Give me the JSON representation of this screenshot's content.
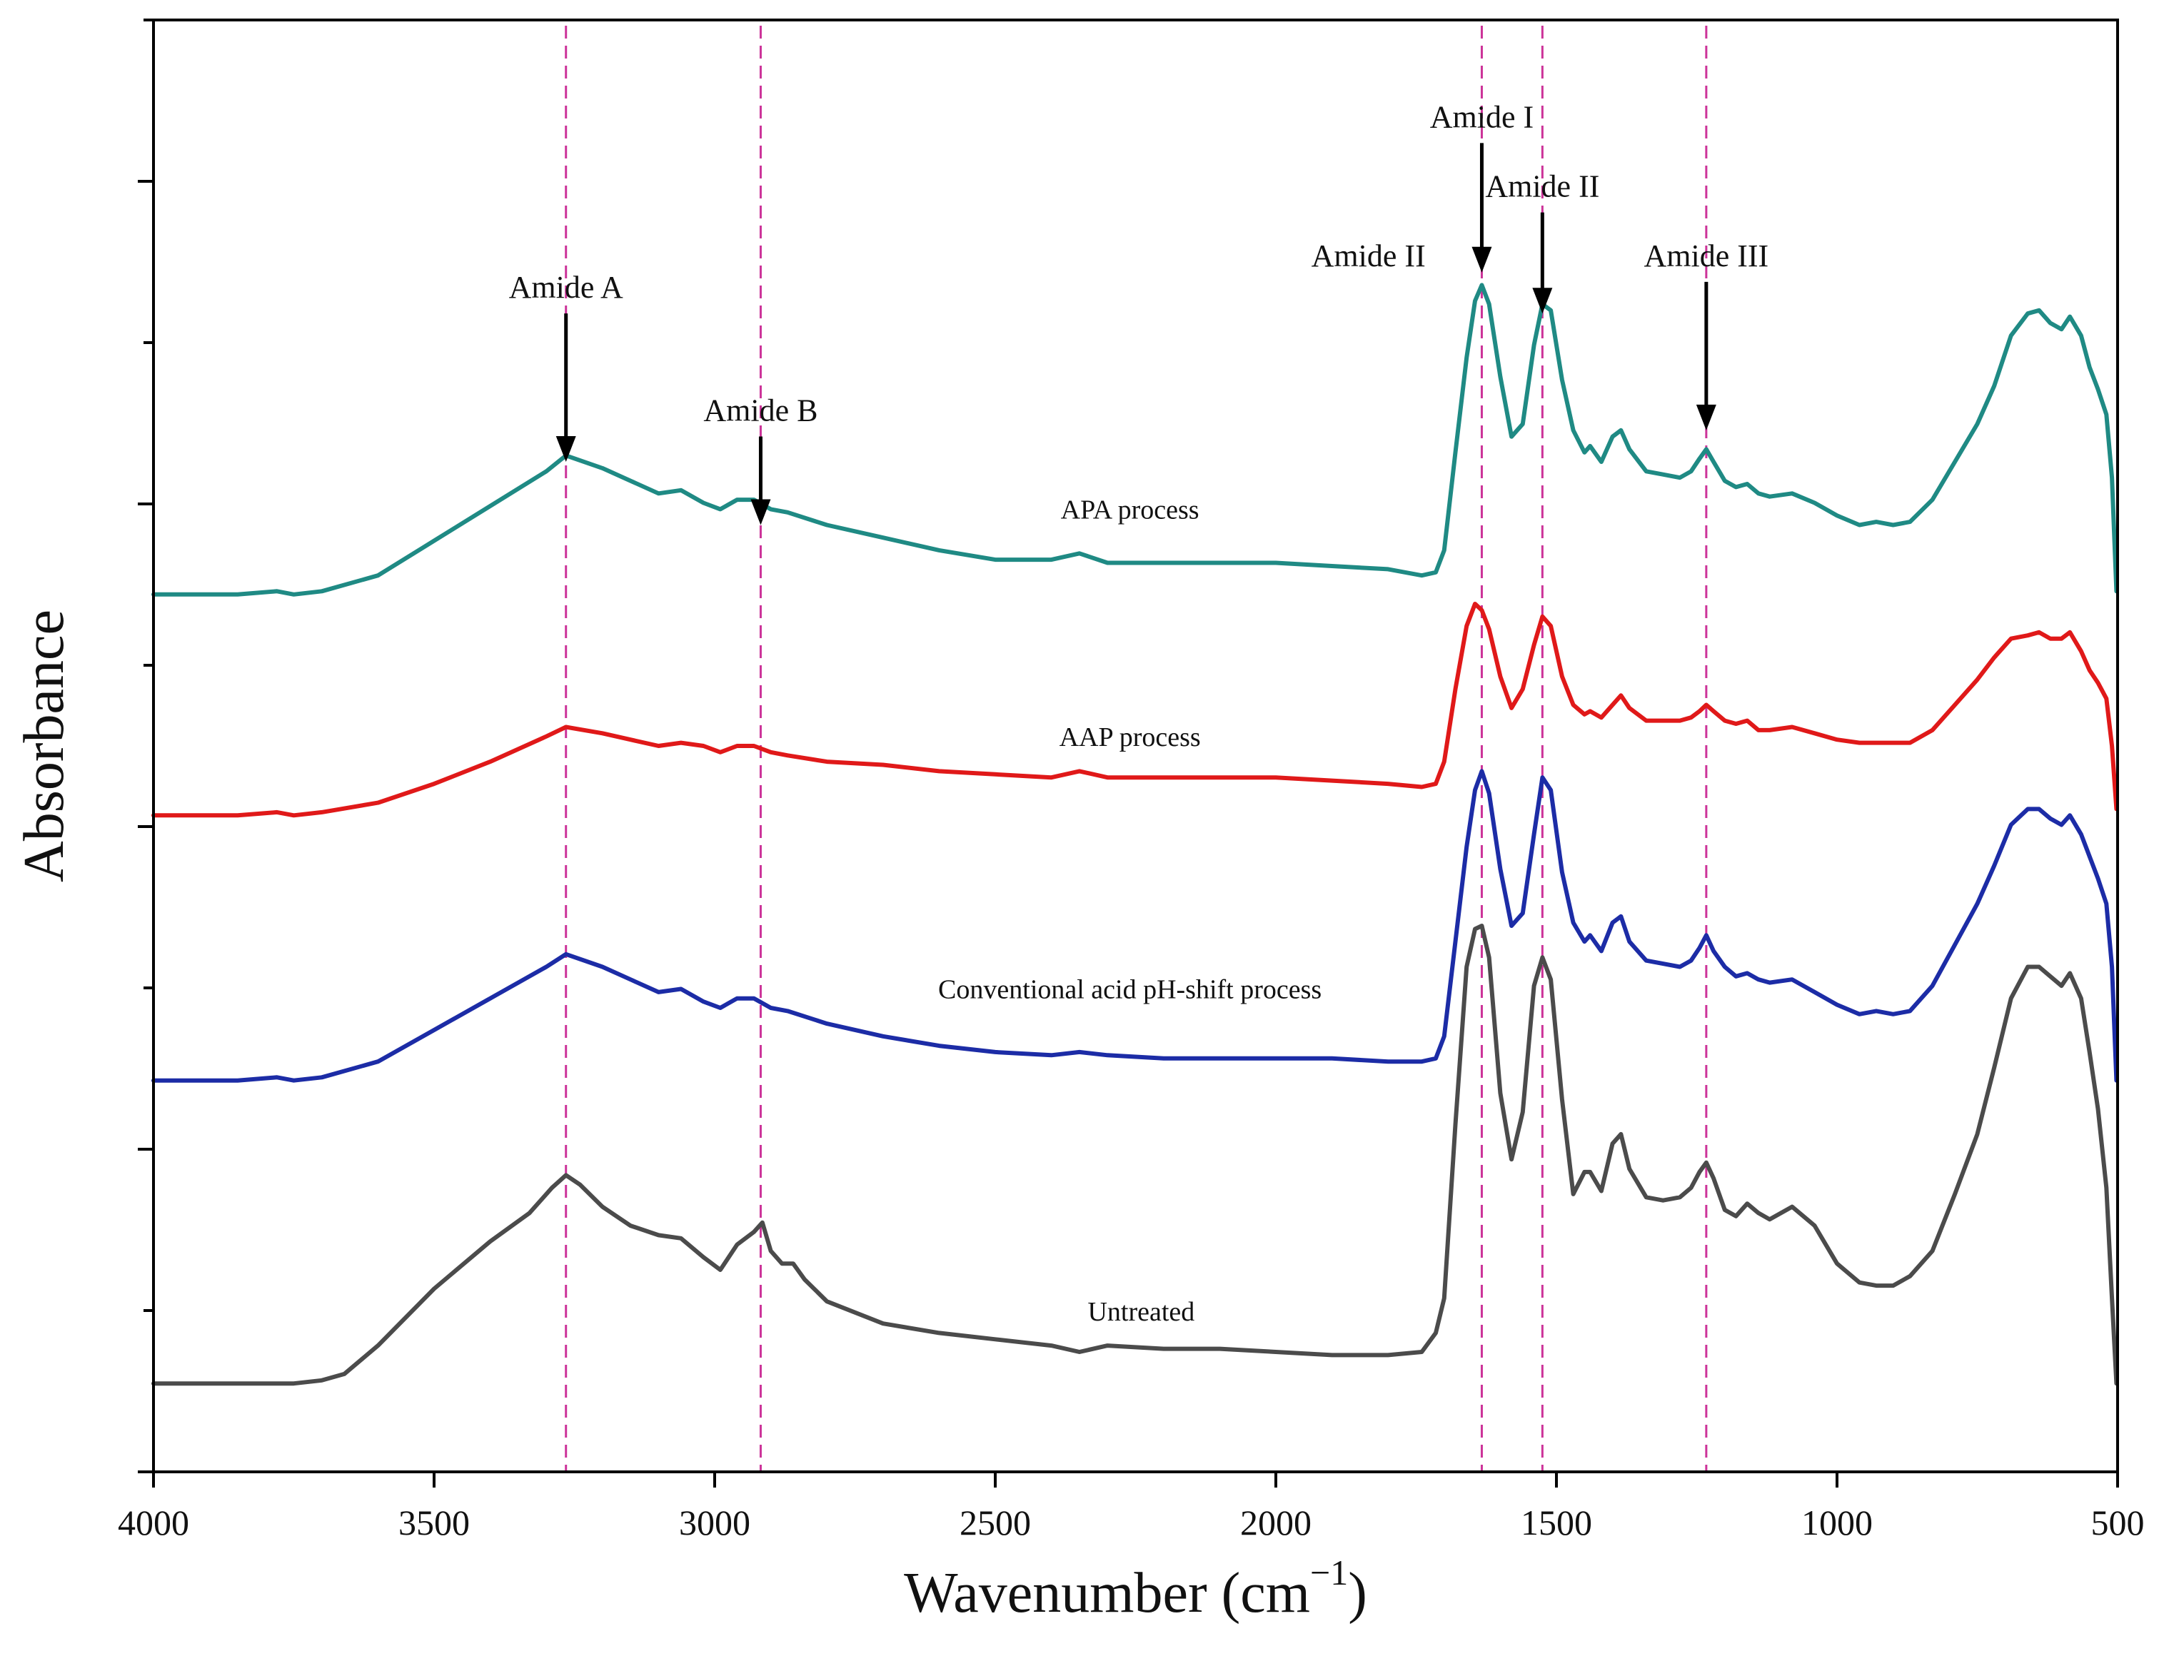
{
  "chart_data": {
    "type": "line",
    "title": "",
    "xlabel": "Wavenumber (cm",
    "xlabel_sup": "−1",
    "xlabel_close": ")",
    "ylabel": "Absorbance",
    "xlim": [
      4000,
      500
    ],
    "x_direction": "reversed",
    "xticks": [
      4000,
      3500,
      3000,
      2500,
      2000,
      1500,
      1000,
      500
    ],
    "yticks_count": 9,
    "ylim": [
      0,
      4.6
    ],
    "y_units": "arbitrary (stacked, offset spectra)",
    "grid": false,
    "legend": "none (series labelled inline)",
    "reference_lines": [
      {
        "x": 3265,
        "color": "#cc3399",
        "style": "dashed"
      },
      {
        "x": 2918,
        "color": "#cc3399",
        "style": "dashed"
      },
      {
        "x": 1633,
        "color": "#cc3399",
        "style": "dashed"
      },
      {
        "x": 1525,
        "color": "#cc3399",
        "style": "dashed"
      },
      {
        "x": 1233,
        "color": "#cc3399",
        "style": "dashed"
      }
    ],
    "annotations": [
      {
        "text": "Amide A",
        "x": 3265,
        "y": 3.72,
        "arrow": true,
        "arrow_to_y": 3.2
      },
      {
        "text": "Amide B",
        "x": 2918,
        "y": 3.33,
        "arrow": true,
        "arrow_to_y": 3.0
      },
      {
        "text": "Amide I",
        "x": 1633,
        "y": 4.26,
        "arrow": true,
        "arrow_to_y": 3.8
      },
      {
        "text": "Amide II",
        "x": 1525,
        "y": 4.04,
        "arrow": true,
        "arrow_to_y": 3.67
      },
      {
        "text": "Amide II",
        "x": 1835,
        "y": 3.82,
        "arrow": false
      },
      {
        "text": "Amide III",
        "x": 1233,
        "y": 3.82,
        "arrow": true,
        "arrow_to_y": 3.3
      }
    ],
    "series": [
      {
        "name": "APA process",
        "color": "#1f8a84",
        "label_at": [
          2260,
          3.02
        ],
        "x": [
          4000,
          3850,
          3780,
          3750,
          3700,
          3600,
          3500,
          3400,
          3300,
          3265,
          3200,
          3150,
          3100,
          3060,
          3020,
          2990,
          2960,
          2930,
          2900,
          2870,
          2800,
          2700,
          2600,
          2500,
          2400,
          2350,
          2300,
          2200,
          2100,
          2000,
          1900,
          1800,
          1740,
          1715,
          1700,
          1680,
          1660,
          1645,
          1633,
          1620,
          1600,
          1580,
          1560,
          1540,
          1525,
          1510,
          1490,
          1470,
          1450,
          1440,
          1420,
          1400,
          1385,
          1370,
          1340,
          1310,
          1280,
          1260,
          1245,
          1233,
          1220,
          1200,
          1180,
          1160,
          1140,
          1120,
          1080,
          1040,
          1000,
          960,
          930,
          900,
          870,
          830,
          790,
          750,
          720,
          690,
          660,
          640,
          620,
          600,
          585,
          565,
          550,
          535,
          520,
          510,
          502
        ],
        "y": [
          2.78,
          2.78,
          2.79,
          2.78,
          2.79,
          2.84,
          2.95,
          3.06,
          3.17,
          3.22,
          3.18,
          3.14,
          3.1,
          3.11,
          3.07,
          3.05,
          3.08,
          3.08,
          3.05,
          3.04,
          3.0,
          2.96,
          2.92,
          2.89,
          2.89,
          2.91,
          2.88,
          2.88,
          2.88,
          2.88,
          2.87,
          2.86,
          2.84,
          2.85,
          2.92,
          3.23,
          3.53,
          3.71,
          3.76,
          3.7,
          3.47,
          3.28,
          3.32,
          3.57,
          3.7,
          3.68,
          3.46,
          3.3,
          3.23,
          3.25,
          3.2,
          3.28,
          3.3,
          3.24,
          3.17,
          3.16,
          3.15,
          3.17,
          3.21,
          3.24,
          3.2,
          3.14,
          3.12,
          3.13,
          3.1,
          3.09,
          3.1,
          3.07,
          3.03,
          3.0,
          3.01,
          3.0,
          3.01,
          3.08,
          3.2,
          3.32,
          3.44,
          3.6,
          3.67,
          3.68,
          3.64,
          3.62,
          3.66,
          3.6,
          3.5,
          3.43,
          3.35,
          3.15,
          2.79
        ]
      },
      {
        "name": "AAP process",
        "color": "#e01919",
        "label_at": [
          2260,
          2.3
        ],
        "x": [
          4000,
          3850,
          3780,
          3750,
          3700,
          3600,
          3500,
          3400,
          3300,
          3265,
          3200,
          3150,
          3100,
          3060,
          3020,
          2990,
          2960,
          2930,
          2900,
          2870,
          2800,
          2700,
          2600,
          2500,
          2400,
          2350,
          2300,
          2200,
          2100,
          2000,
          1900,
          1800,
          1740,
          1715,
          1700,
          1680,
          1660,
          1645,
          1633,
          1620,
          1600,
          1580,
          1560,
          1540,
          1525,
          1510,
          1490,
          1470,
          1450,
          1440,
          1420,
          1400,
          1385,
          1370,
          1340,
          1310,
          1280,
          1260,
          1245,
          1233,
          1220,
          1200,
          1180,
          1160,
          1140,
          1120,
          1080,
          1040,
          1000,
          960,
          930,
          900,
          870,
          830,
          790,
          750,
          720,
          690,
          660,
          640,
          620,
          600,
          585,
          565,
          550,
          535,
          520,
          510,
          502
        ],
        "y": [
          2.08,
          2.08,
          2.09,
          2.08,
          2.09,
          2.12,
          2.18,
          2.25,
          2.33,
          2.36,
          2.34,
          2.32,
          2.3,
          2.31,
          2.3,
          2.28,
          2.3,
          2.3,
          2.28,
          2.27,
          2.25,
          2.24,
          2.22,
          2.21,
          2.2,
          2.22,
          2.2,
          2.2,
          2.2,
          2.2,
          2.19,
          2.18,
          2.17,
          2.18,
          2.25,
          2.48,
          2.68,
          2.75,
          2.73,
          2.67,
          2.52,
          2.42,
          2.48,
          2.62,
          2.71,
          2.68,
          2.52,
          2.43,
          2.4,
          2.41,
          2.39,
          2.43,
          2.46,
          2.42,
          2.38,
          2.38,
          2.38,
          2.39,
          2.41,
          2.43,
          2.41,
          2.38,
          2.37,
          2.38,
          2.35,
          2.35,
          2.36,
          2.34,
          2.32,
          2.31,
          2.31,
          2.31,
          2.31,
          2.35,
          2.43,
          2.51,
          2.58,
          2.64,
          2.65,
          2.66,
          2.64,
          2.64,
          2.66,
          2.6,
          2.54,
          2.5,
          2.45,
          2.3,
          2.1
        ]
      },
      {
        "name": "Conventional acid pH-shift process",
        "color": "#1c2ca6",
        "label_at": [
          2260,
          1.5
        ],
        "x": [
          4000,
          3850,
          3780,
          3750,
          3700,
          3600,
          3500,
          3400,
          3300,
          3265,
          3200,
          3150,
          3100,
          3060,
          3020,
          2990,
          2960,
          2930,
          2900,
          2870,
          2800,
          2700,
          2600,
          2500,
          2400,
          2350,
          2300,
          2200,
          2100,
          2000,
          1900,
          1800,
          1740,
          1715,
          1700,
          1680,
          1660,
          1645,
          1633,
          1620,
          1600,
          1580,
          1560,
          1540,
          1525,
          1510,
          1490,
          1470,
          1450,
          1440,
          1420,
          1400,
          1385,
          1370,
          1340,
          1310,
          1280,
          1260,
          1245,
          1233,
          1220,
          1200,
          1180,
          1160,
          1140,
          1120,
          1080,
          1040,
          1000,
          960,
          930,
          900,
          870,
          830,
          790,
          750,
          720,
          690,
          660,
          640,
          620,
          600,
          585,
          565,
          550,
          535,
          520,
          510,
          502
        ],
        "y": [
          1.24,
          1.24,
          1.25,
          1.24,
          1.25,
          1.3,
          1.4,
          1.5,
          1.6,
          1.64,
          1.6,
          1.56,
          1.52,
          1.53,
          1.49,
          1.47,
          1.5,
          1.5,
          1.47,
          1.46,
          1.42,
          1.38,
          1.35,
          1.33,
          1.32,
          1.33,
          1.32,
          1.31,
          1.31,
          1.31,
          1.31,
          1.3,
          1.3,
          1.31,
          1.38,
          1.68,
          1.98,
          2.16,
          2.22,
          2.15,
          1.91,
          1.73,
          1.77,
          2.02,
          2.2,
          2.16,
          1.9,
          1.74,
          1.68,
          1.7,
          1.65,
          1.74,
          1.76,
          1.68,
          1.62,
          1.61,
          1.6,
          1.62,
          1.66,
          1.7,
          1.65,
          1.6,
          1.57,
          1.58,
          1.56,
          1.55,
          1.56,
          1.52,
          1.48,
          1.45,
          1.46,
          1.45,
          1.46,
          1.54,
          1.67,
          1.8,
          1.92,
          2.05,
          2.1,
          2.1,
          2.07,
          2.05,
          2.08,
          2.02,
          1.95,
          1.88,
          1.8,
          1.6,
          1.24
        ]
      },
      {
        "name": "Untreated",
        "color": "#4b4b4b",
        "label_at": [
          2240,
          0.48
        ],
        "x": [
          4000,
          3850,
          3780,
          3750,
          3700,
          3660,
          3600,
          3500,
          3400,
          3330,
          3290,
          3265,
          3240,
          3200,
          3150,
          3100,
          3060,
          3020,
          2990,
          2960,
          2930,
          2915,
          2900,
          2880,
          2860,
          2840,
          2800,
          2700,
          2600,
          2500,
          2400,
          2350,
          2300,
          2200,
          2100,
          2000,
          1900,
          1800,
          1740,
          1715,
          1700,
          1680,
          1660,
          1645,
          1633,
          1620,
          1600,
          1580,
          1560,
          1540,
          1525,
          1510,
          1490,
          1470,
          1450,
          1440,
          1420,
          1400,
          1385,
          1370,
          1340,
          1310,
          1280,
          1260,
          1245,
          1233,
          1220,
          1200,
          1180,
          1160,
          1140,
          1120,
          1080,
          1040,
          1000,
          960,
          930,
          900,
          870,
          830,
          790,
          750,
          720,
          690,
          660,
          640,
          620,
          600,
          585,
          565,
          550,
          535,
          520,
          510,
          502
        ],
        "y": [
          0.28,
          0.28,
          0.28,
          0.28,
          0.29,
          0.31,
          0.4,
          0.58,
          0.73,
          0.82,
          0.9,
          0.94,
          0.91,
          0.84,
          0.78,
          0.75,
          0.74,
          0.68,
          0.64,
          0.72,
          0.76,
          0.79,
          0.7,
          0.66,
          0.66,
          0.61,
          0.54,
          0.47,
          0.44,
          0.42,
          0.4,
          0.38,
          0.4,
          0.39,
          0.39,
          0.38,
          0.37,
          0.37,
          0.38,
          0.44,
          0.55,
          1.1,
          1.6,
          1.72,
          1.73,
          1.63,
          1.2,
          0.99,
          1.14,
          1.54,
          1.63,
          1.56,
          1.18,
          0.88,
          0.95,
          0.95,
          0.89,
          1.04,
          1.07,
          0.96,
          0.87,
          0.86,
          0.87,
          0.9,
          0.95,
          0.98,
          0.93,
          0.83,
          0.81,
          0.85,
          0.82,
          0.8,
          0.84,
          0.78,
          0.66,
          0.6,
          0.59,
          0.59,
          0.62,
          0.7,
          0.88,
          1.07,
          1.28,
          1.5,
          1.6,
          1.6,
          1.57,
          1.54,
          1.58,
          1.5,
          1.33,
          1.15,
          0.9,
          0.55,
          0.28
        ]
      }
    ]
  }
}
